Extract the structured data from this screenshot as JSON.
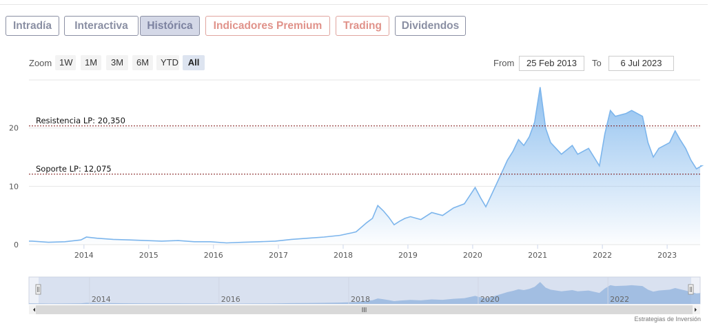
{
  "tabs": [
    {
      "label": "Intradía",
      "style": "normal"
    },
    {
      "label": "Interactiva",
      "style": "normal"
    },
    {
      "label": "Histórica",
      "style": "active"
    },
    {
      "label": "Indicadores Premium",
      "style": "premium"
    },
    {
      "label": "Trading",
      "style": "premium"
    },
    {
      "label": "Dividendos",
      "style": "normal"
    }
  ],
  "zoom": {
    "label": "Zoom",
    "buttons": [
      "1W",
      "1M",
      "3M",
      "6M",
      "YTD",
      "All"
    ],
    "selected": "All"
  },
  "range": {
    "from_label": "From",
    "from_value": "25 Feb 2013",
    "to_label": "To",
    "to_value": "6 Jul 2023"
  },
  "colors": {
    "accent": "#7cb5ec",
    "fill_top": "#7cb5ec",
    "navigator_fill": "#c9d4ea",
    "level_line": "#7a1010"
  },
  "credit": "Estrategias de Inversión",
  "chart_data": {
    "type": "area",
    "title": "",
    "xlabel": "",
    "ylabel": "",
    "xlim": [
      "2013-02-25",
      "2023-07-06"
    ],
    "ylim": [
      0,
      28
    ],
    "y_ticks": [
      0,
      10,
      20
    ],
    "x_ticks": [
      "2014",
      "2015",
      "2016",
      "2017",
      "2018",
      "2019",
      "2020",
      "2021",
      "2022",
      "2023"
    ],
    "grid": "horizontal",
    "legend": "none",
    "series": [
      {
        "x": [
          "2013-03",
          "2013-06",
          "2013-09",
          "2013-12",
          "2014-01",
          "2014-03",
          "2014-06",
          "2014-09",
          "2014-12",
          "2015-03",
          "2015-06",
          "2015-09",
          "2015-12",
          "2016-03",
          "2016-06",
          "2016-09",
          "2016-12",
          "2017-03",
          "2017-06",
          "2017-09",
          "2017-12",
          "2018-02",
          "2018-03",
          "2018-05",
          "2018-06",
          "2018-07",
          "2018-08",
          "2018-09",
          "2018-10",
          "2018-11",
          "2018-12",
          "2019-01",
          "2019-03",
          "2019-05",
          "2019-07",
          "2019-09",
          "2019-11",
          "2020-01",
          "2020-02",
          "2020-03",
          "2020-04",
          "2020-06",
          "2020-07",
          "2020-08",
          "2020-09",
          "2020-10",
          "2020-11",
          "2020-12",
          "2021-01",
          "2021-02",
          "2021-03",
          "2021-05",
          "2021-07",
          "2021-08",
          "2021-10",
          "2021-12",
          "2022-01",
          "2022-02",
          "2022-03",
          "2022-05",
          "2022-06",
          "2022-08",
          "2022-09",
          "2022-10",
          "2022-11",
          "2023-01",
          "2023-02",
          "2023-03",
          "2023-04",
          "2023-05",
          "2023-06",
          "2023-07"
        ],
        "y": [
          0.6,
          0.4,
          0.5,
          0.8,
          1.3,
          1.1,
          0.9,
          0.8,
          0.7,
          0.6,
          0.7,
          0.5,
          0.5,
          0.3,
          0.4,
          0.5,
          0.6,
          0.9,
          1.1,
          1.3,
          1.6,
          2.0,
          2.2,
          3.8,
          4.5,
          6.7,
          5.8,
          4.7,
          3.4,
          4.0,
          4.5,
          4.8,
          4.3,
          5.5,
          5.0,
          6.3,
          7.0,
          9.8,
          8.0,
          6.5,
          8.5,
          12.5,
          14.5,
          16.0,
          18.0,
          17.0,
          18.5,
          21.0,
          27.0,
          20.0,
          17.5,
          15.5,
          17.0,
          15.5,
          16.5,
          13.5,
          19.0,
          23.0,
          22.0,
          22.5,
          23.0,
          22.0,
          17.5,
          15.0,
          16.5,
          17.5,
          19.5,
          18.0,
          16.5,
          14.5,
          13.0,
          13.5
        ]
      }
    ],
    "annotations": [
      {
        "label": "Resistencia LP: 20,350",
        "value": 20.35
      },
      {
        "label": "Soporte LP: 12,075",
        "value": 12.075
      }
    ],
    "navigator": {
      "x_ticks": [
        "2014",
        "2016",
        "2018",
        "2020",
        "2022"
      ]
    }
  }
}
